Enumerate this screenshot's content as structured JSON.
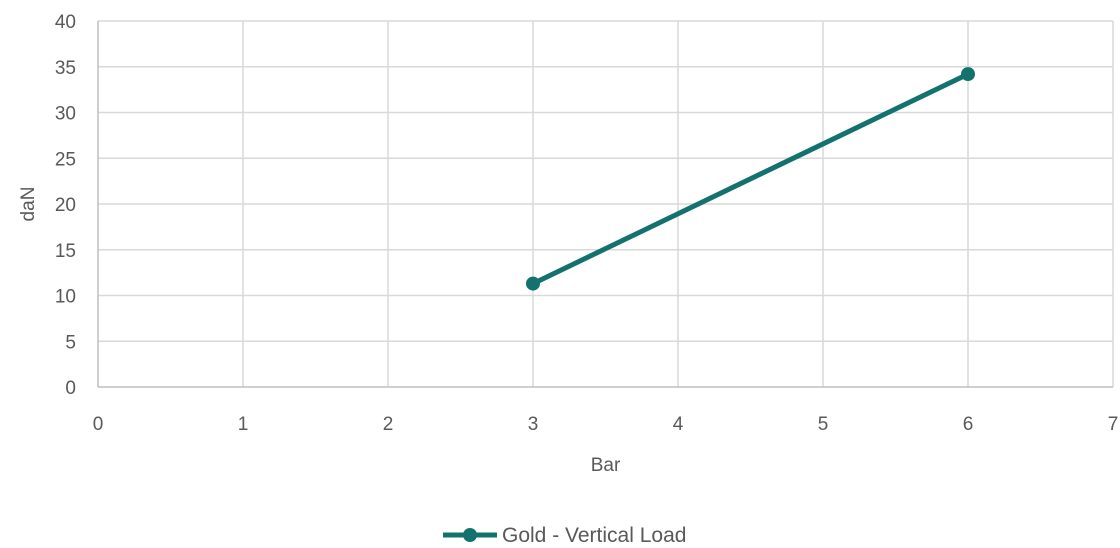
{
  "chart_data": {
    "type": "scatter",
    "xlabel": "Bar",
    "ylabel": "daN",
    "xlim": [
      0,
      7
    ],
    "ylim": [
      0,
      40
    ],
    "xticks": [
      0,
      1,
      2,
      3,
      4,
      5,
      6,
      7
    ],
    "yticks": [
      0,
      5,
      10,
      15,
      20,
      25,
      30,
      35,
      40
    ],
    "grid": true,
    "legend_position": "bottom",
    "series": [
      {
        "name": "Gold - Vertical Load",
        "color": "#13726E",
        "marker": "circle",
        "line": true,
        "x": [
          3,
          6
        ],
        "y": [
          11.3,
          34.2
        ]
      }
    ]
  }
}
